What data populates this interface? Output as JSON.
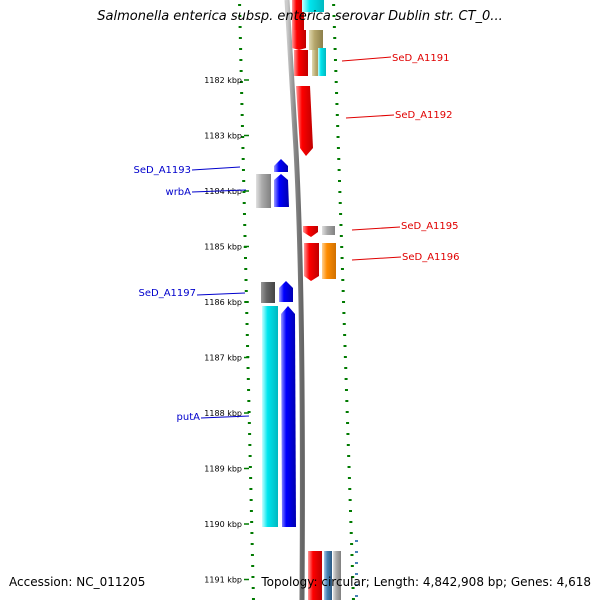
{
  "title": "Salmonella enterica subsp. enterica serovar Dublin str. CT_0...",
  "accession": "Accession: NC_011205",
  "summary": "Topology: circular; Length: 4,842,908 bp; Genes: 4,618",
  "scale": {
    "unit": "kbp",
    "ticks": [
      {
        "label": "1182 kbp"
      },
      {
        "label": "1183 kbp"
      },
      {
        "label": "1184 kbp"
      },
      {
        "label": "1185 kbp"
      },
      {
        "label": "1186 kbp"
      },
      {
        "label": "1187 kbp"
      },
      {
        "label": "1188 kbp"
      },
      {
        "label": "1189 kbp"
      },
      {
        "label": "1190 kbp"
      },
      {
        "label": "1191 kbp"
      }
    ]
  },
  "gene_labels": {
    "forward": [
      "SeD_A1191",
      "SeD_A1192",
      "SeD_A1195",
      "SeD_A1196"
    ],
    "reverse": [
      "SeD_A1193",
      "wrbA",
      "SeD_A1197",
      "putA"
    ]
  },
  "colors": {
    "forward_label": "#e00000",
    "reverse_label": "#0000cc",
    "dots": "#007a00",
    "backbone": "#888888",
    "red": "#ff0000",
    "blue": "#0000ff",
    "cyan": "#00e5ee",
    "orange": "#ff8c00",
    "gray": "#aaaaaa",
    "darkgray": "#666666",
    "khaki": "#b5a66b"
  }
}
